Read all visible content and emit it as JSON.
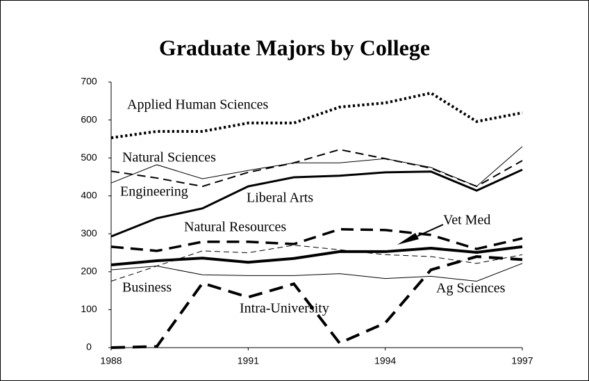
{
  "chart_data": {
    "type": "line",
    "title": "Graduate Majors by College",
    "x": [
      1988,
      1989,
      1990,
      1991,
      1992,
      1993,
      1994,
      1995,
      1996,
      1997
    ],
    "xlim": [
      1988,
      1997
    ],
    "xticks": [
      1988,
      1991,
      1994,
      1997
    ],
    "ylim": [
      0,
      700
    ],
    "yticks": [
      0,
      100,
      200,
      300,
      400,
      500,
      600,
      700
    ],
    "series": [
      {
        "name": "Applied Human Sciences",
        "color": "#000000",
        "style": "dotted",
        "width": 4,
        "values": [
          553,
          570,
          570,
          592,
          592,
          634,
          645,
          671,
          596,
          619
        ]
      },
      {
        "name": "Natural Sciences",
        "color": "#000000",
        "style": "solid",
        "width": 1,
        "values": [
          434,
          482,
          445,
          467,
          487,
          487,
          498,
          475,
          425,
          530
        ]
      },
      {
        "name": "Engineering",
        "color": "#000000",
        "style": "dashed",
        "width": 2,
        "values": [
          465,
          447,
          425,
          462,
          487,
          522,
          498,
          473,
          425,
          493
        ]
      },
      {
        "name": "Liberal Arts",
        "color": "#000000",
        "style": "solid",
        "width": 3,
        "values": [
          293,
          341,
          367,
          425,
          449,
          453,
          462,
          464,
          414,
          469
        ]
      },
      {
        "name": "Natural Resources",
        "color": "#000000",
        "style": "dashed",
        "width": 3.5,
        "values": [
          266,
          255,
          279,
          279,
          273,
          312,
          310,
          297,
          260,
          288
        ]
      },
      {
        "name": "Vet Med",
        "color": "#000000",
        "style": "solid",
        "width": 4,
        "values": [
          218,
          229,
          236,
          225,
          235,
          253,
          253,
          262,
          251,
          266
        ]
      },
      {
        "name": "Business",
        "color": "#000000",
        "style": "solid",
        "width": 1,
        "values": [
          205,
          215,
          192,
          190,
          190,
          195,
          182,
          188,
          175,
          222
        ]
      },
      {
        "name": "Intra-University",
        "color": "#000000",
        "style": "dashed",
        "width": 4,
        "values": [
          0,
          3,
          170,
          133,
          168,
          12,
          65,
          205,
          240,
          232
        ]
      },
      {
        "name": "Ag Sciences",
        "color": "#000000",
        "style": "dashed",
        "width": 1,
        "values": [
          175,
          215,
          255,
          250,
          270,
          258,
          245,
          240,
          222,
          245
        ]
      }
    ]
  }
}
